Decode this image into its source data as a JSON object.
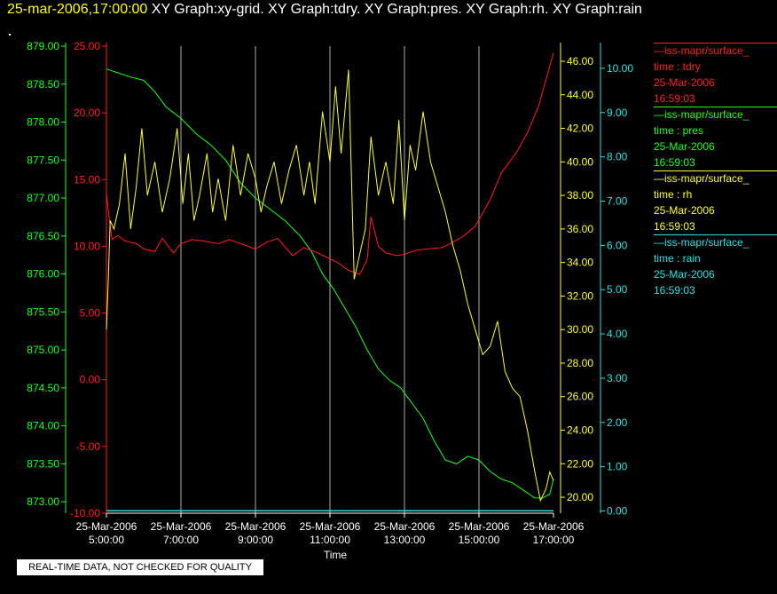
{
  "title": {
    "timestamp": "25-mar-2006,17:00:00",
    "graphs": "XY Graph:xy-grid.  XY Graph:tdry.  XY Graph:pres.  XY Graph:rh.  XY Graph:rain"
  },
  "legend": [
    {
      "name": "iss-mapr/surface_",
      "label": "time : tdry",
      "date": "25-Mar-2006",
      "time": "16:59:03",
      "color": "#ff2020"
    },
    {
      "name": "iss-mapr/surface_",
      "label": "time : pres",
      "date": "25-Mar-2006",
      "time": "16:59:03",
      "color": "#20ff20"
    },
    {
      "name": "iss-mapr/surface_",
      "label": "time : rh",
      "date": "25-Mar-2006",
      "time": "16:59:03",
      "color": "#ffff30"
    },
    {
      "name": "iss-mapr/surface_",
      "label": "time : rain",
      "date": "25-Mar-2006",
      "time": "16:59:03",
      "color": "#30e0e0"
    }
  ],
  "disclaimer": "REAL-TIME DATA, NOT CHECKED FOR QUALITY",
  "chart_data": {
    "type": "line",
    "xlabel": "Time",
    "x_ticks": [
      {
        "date": "25-Mar-2006",
        "time": "5:00:00",
        "h": 5
      },
      {
        "date": "25-Mar-2006",
        "time": "7:00:00",
        "h": 7
      },
      {
        "date": "25-Mar-2006",
        "time": "9:00:00",
        "h": 9
      },
      {
        "date": "25-Mar-2006",
        "time": "11:00:00",
        "h": 11
      },
      {
        "date": "25-Mar-2006",
        "time": "13:00:00",
        "h": 13
      },
      {
        "date": "25-Mar-2006",
        "time": "15:00:00",
        "h": 15
      },
      {
        "date": "25-Mar-2006",
        "time": "17:00:00",
        "h": 17
      }
    ],
    "xlim": [
      5,
      17
    ],
    "axes": {
      "pres": {
        "ticks": [
          "879.00",
          "878.50",
          "878.00",
          "877.50",
          "877.00",
          "876.50",
          "876.00",
          "875.50",
          "875.00",
          "874.50",
          "874.00",
          "873.50",
          "873.00"
        ],
        "ylim": [
          872.85,
          879.0
        ],
        "color": "#20ff20"
      },
      "tdry": {
        "ticks": [
          "25.00",
          "20.00",
          "15.00",
          "10.00",
          "5.00",
          "0.00",
          "-5.00",
          "-10.00"
        ],
        "ylim": [
          -10,
          25
        ],
        "color": "#ff2020"
      },
      "rh": {
        "ticks": [
          "46.00",
          "44.00",
          "42.00",
          "40.00",
          "38.00",
          "36.00",
          "34.00",
          "32.00",
          "30.00",
          "28.00",
          "26.00",
          "24.00",
          "22.00",
          "20.00"
        ],
        "ylim": [
          19.05,
          46.9
        ],
        "color": "#ffff30"
      },
      "rain": {
        "ticks": [
          "10.00",
          "9.00",
          "8.00",
          "7.00",
          "6.00",
          "5.00",
          "4.00",
          "3.00",
          "2.00",
          "1.00",
          "0.00"
        ],
        "ylim": [
          -0.05,
          10.5
        ],
        "color": "#30e0e0"
      }
    },
    "series": [
      {
        "axis": "tdry",
        "x": [
          5.0,
          5.07,
          5.15,
          5.3,
          5.5,
          5.8,
          6.0,
          6.3,
          6.5,
          6.8,
          7.0,
          7.3,
          7.6,
          8.0,
          8.3,
          8.7,
          9.0,
          9.3,
          9.6,
          10.0,
          10.3,
          10.6,
          10.9,
          11.2,
          11.5,
          11.8,
          12.0,
          12.1,
          12.3,
          12.5,
          12.8,
          13.0,
          13.3,
          13.6,
          14.0,
          14.3,
          14.6,
          14.9,
          15.1,
          15.3,
          15.6,
          16.0,
          16.3,
          16.6,
          16.8,
          16.95,
          17.0
        ],
        "y": [
          14,
          12.2,
          10.5,
          10.8,
          10.4,
          10.2,
          9.8,
          9.6,
          10.6,
          9.5,
          10.2,
          10.5,
          10.4,
          10.2,
          10.5,
          10.1,
          9.8,
          10.3,
          10.6,
          9.3,
          9.9,
          9.6,
          9.2,
          8.8,
          8.2,
          7.9,
          9.0,
          12.2,
          10.0,
          9.5,
          9.3,
          9.4,
          9.7,
          9.8,
          9.9,
          10.3,
          10.8,
          11.5,
          12.5,
          13.5,
          15.5,
          17.0,
          18.5,
          20.5,
          22.5,
          24.0,
          24.5
        ]
      },
      {
        "axis": "pres",
        "x": [
          5.0,
          5.3,
          5.6,
          6.0,
          6.3,
          6.6,
          7.0,
          7.4,
          7.8,
          8.2,
          8.6,
          9.0,
          9.4,
          9.8,
          10.2,
          10.5,
          10.8,
          11.1,
          11.4,
          11.7,
          12.0,
          12.3,
          12.6,
          12.9,
          13.2,
          13.5,
          13.8,
          14.1,
          14.4,
          14.7,
          15.0,
          15.3,
          15.6,
          15.9,
          16.2,
          16.5,
          16.7,
          16.9,
          17.0
        ],
        "y": [
          878.7,
          878.65,
          878.6,
          878.55,
          878.4,
          878.2,
          878.05,
          877.85,
          877.7,
          877.5,
          877.2,
          877.0,
          876.85,
          876.7,
          876.5,
          876.3,
          876.0,
          875.8,
          875.55,
          875.3,
          875.0,
          874.75,
          874.6,
          874.5,
          874.3,
          874.1,
          873.8,
          873.55,
          873.5,
          873.6,
          873.55,
          873.4,
          873.3,
          873.25,
          873.15,
          873.05,
          873.05,
          873.1,
          873.3
        ]
      },
      {
        "axis": "rh",
        "x": [
          5.0,
          5.05,
          5.1,
          5.2,
          5.35,
          5.5,
          5.65,
          5.8,
          5.95,
          6.1,
          6.3,
          6.5,
          6.7,
          6.9,
          7.05,
          7.2,
          7.35,
          7.5,
          7.7,
          7.85,
          8.0,
          8.2,
          8.4,
          8.6,
          8.8,
          9.0,
          9.15,
          9.3,
          9.5,
          9.7,
          9.9,
          10.1,
          10.3,
          10.45,
          10.6,
          10.8,
          11.0,
          11.15,
          11.3,
          11.5,
          11.65,
          11.8,
          11.95,
          12.1,
          12.3,
          12.5,
          12.7,
          12.85,
          13.0,
          13.15,
          13.3,
          13.5,
          13.7,
          13.9,
          14.1,
          14.3,
          14.5,
          14.7,
          14.9,
          15.1,
          15.3,
          15.5,
          15.7,
          15.9,
          16.1,
          16.3,
          16.5,
          16.65,
          16.8,
          16.9,
          17.0
        ],
        "y": [
          30,
          33,
          36.5,
          36.0,
          37.5,
          40.5,
          36.0,
          38.5,
          42.0,
          38.0,
          40.0,
          37.0,
          39.0,
          42.0,
          37.5,
          40.5,
          36.5,
          38.0,
          40.5,
          37.0,
          39.0,
          36.5,
          41.0,
          38.0,
          40.5,
          39.0,
          37.0,
          38.5,
          40.0,
          37.5,
          39.5,
          41.0,
          38.0,
          40.0,
          37.5,
          43.0,
          40.0,
          44.5,
          40.5,
          45.5,
          33.0,
          34.5,
          36.0,
          41.5,
          38.0,
          40.0,
          37.5,
          42.5,
          36.5,
          41.0,
          39.5,
          43.0,
          40.0,
          38.5,
          37.0,
          35.0,
          33.5,
          31.5,
          30.0,
          28.5,
          29.0,
          30.5,
          27.5,
          26.5,
          26.0,
          24.0,
          21.5,
          19.8,
          20.5,
          21.5,
          21.0
        ]
      },
      {
        "axis": "rain",
        "x": [
          5.0,
          17.0
        ],
        "y": [
          0,
          0
        ]
      }
    ]
  }
}
